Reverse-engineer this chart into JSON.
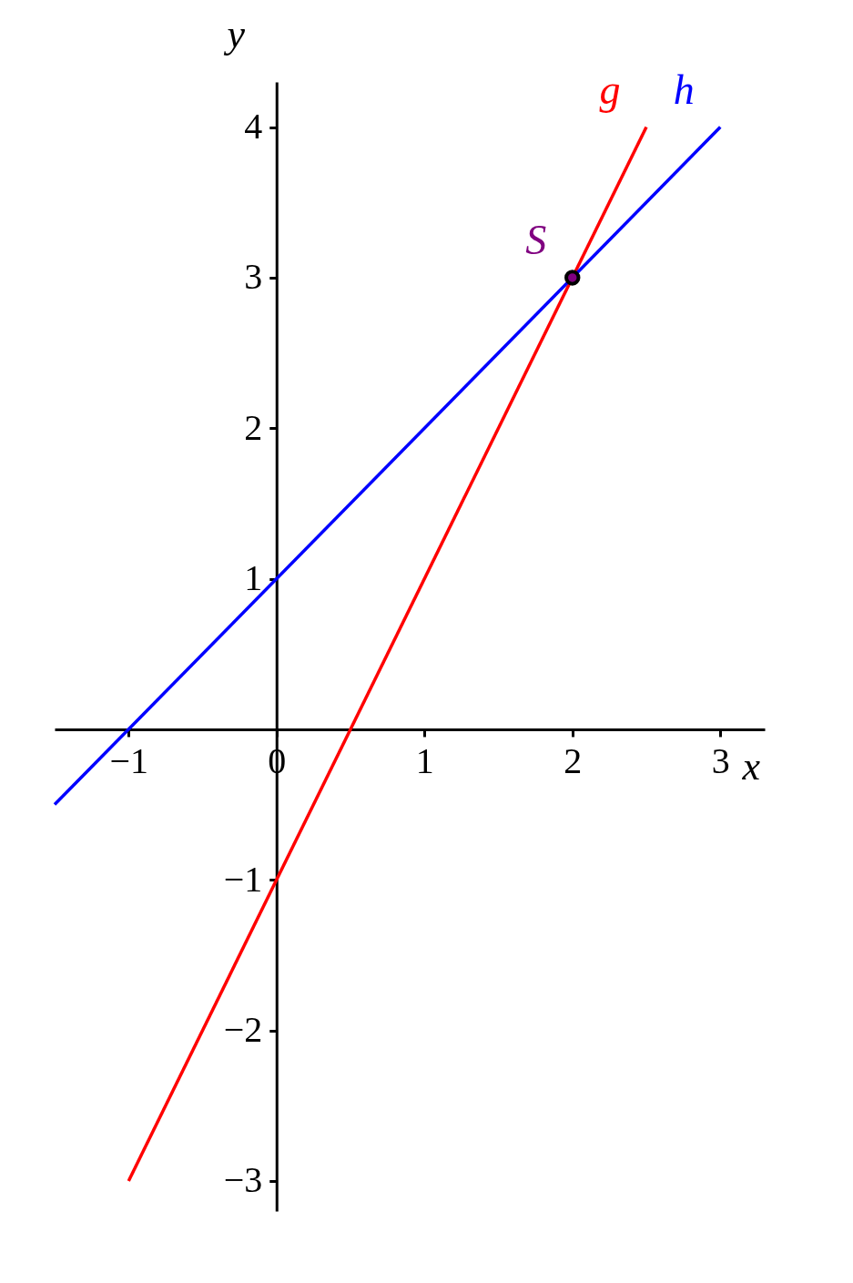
{
  "chart_data": {
    "type": "line",
    "xlabel": "x",
    "ylabel": "y",
    "xlim": [
      -1.5,
      3.3
    ],
    "ylim": [
      -3.2,
      4.3
    ],
    "xticks": [
      -1,
      0,
      1,
      2,
      3
    ],
    "yticks": [
      -3,
      -2,
      -1,
      1,
      2,
      3,
      4
    ],
    "series": [
      {
        "name": "g",
        "color": "#ff0000",
        "x": [
          -1,
          2.5
        ],
        "values": [
          -3,
          4
        ]
      },
      {
        "name": "h",
        "color": "#0000ff",
        "x": [
          -1.5,
          3
        ],
        "values": [
          -0.5,
          4
        ]
      },
      {
        "name": "S",
        "type": "scatter",
        "marker": "circle",
        "color": "#800080",
        "x": [
          2
        ],
        "values": [
          3
        ]
      }
    ]
  }
}
